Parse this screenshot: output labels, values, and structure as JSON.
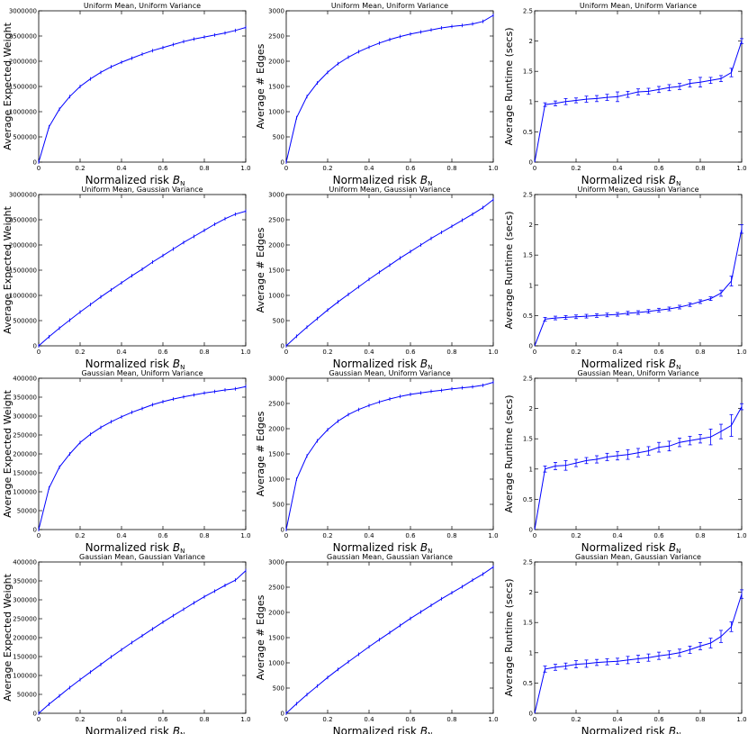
{
  "x": [
    0,
    0.05,
    0.1,
    0.15,
    0.2,
    0.25,
    0.3,
    0.35,
    0.4,
    0.45,
    0.5,
    0.55,
    0.6,
    0.65,
    0.7,
    0.75,
    0.8,
    0.85,
    0.9,
    0.95,
    1.0
  ],
  "xlabel": "Normalized risk",
  "xlabel_symbol": "B",
  "xlabel_subscript": "N",
  "series_color": "#0000ff",
  "chart_data": [
    {
      "type": "line",
      "title": "Uniform Mean, Uniform Variance",
      "xlabel": "Normalized risk B_N",
      "ylabel": "Average Expected Weight",
      "xlim": [
        0,
        1
      ],
      "ylim": [
        0,
        3000000
      ],
      "yticks": [
        0,
        500000,
        1000000,
        1500000,
        2000000,
        2500000,
        3000000
      ],
      "values": [
        0,
        700000,
        1050000,
        1300000,
        1500000,
        1650000,
        1780000,
        1890000,
        1980000,
        2060000,
        2140000,
        2210000,
        2270000,
        2330000,
        2390000,
        2440000,
        2480000,
        2520000,
        2560000,
        2610000,
        2670000
      ],
      "errors": null
    },
    {
      "type": "line",
      "title": "Uniform Mean, Uniform Variance",
      "xlabel": "Normalized risk B_N",
      "ylabel": "Average # Edges",
      "xlim": [
        0,
        1
      ],
      "ylim": [
        0,
        3000
      ],
      "yticks": [
        0,
        500,
        1000,
        1500,
        2000,
        2500,
        3000
      ],
      "values": [
        0,
        880,
        1300,
        1570,
        1780,
        1950,
        2080,
        2190,
        2280,
        2360,
        2430,
        2490,
        2540,
        2580,
        2620,
        2660,
        2690,
        2710,
        2740,
        2790,
        2910
      ],
      "errors": null
    },
    {
      "type": "line",
      "title": "Uniform Mean, Uniform Variance",
      "xlabel": "Normalized risk B_N",
      "ylabel": "Average Runtime (secs)",
      "xlim": [
        0,
        1
      ],
      "ylim": [
        0,
        2.5
      ],
      "yticks": [
        0,
        0.5,
        1.0,
        1.5,
        2.0,
        2.5
      ],
      "values": [
        0,
        0.95,
        0.97,
        1.0,
        1.02,
        1.04,
        1.05,
        1.07,
        1.08,
        1.12,
        1.16,
        1.17,
        1.2,
        1.23,
        1.25,
        1.3,
        1.32,
        1.35,
        1.38,
        1.48,
        2.0
      ],
      "errors": [
        0,
        0.03,
        0.04,
        0.05,
        0.04,
        0.05,
        0.05,
        0.05,
        0.08,
        0.05,
        0.05,
        0.05,
        0.05,
        0.05,
        0.05,
        0.06,
        0.08,
        0.05,
        0.05,
        0.07,
        0.04
      ]
    },
    {
      "type": "line",
      "title": "Uniform Mean, Gaussian Variance",
      "xlabel": "Normalized risk B_N",
      "ylabel": "Average Expected Weight",
      "xlim": [
        0,
        1
      ],
      "ylim": [
        0,
        3000000
      ],
      "yticks": [
        0,
        500000,
        1000000,
        1500000,
        2000000,
        2500000,
        3000000
      ],
      "values": [
        0,
        180000,
        350000,
        510000,
        670000,
        820000,
        970000,
        1110000,
        1250000,
        1390000,
        1520000,
        1660000,
        1790000,
        1920000,
        2050000,
        2170000,
        2290000,
        2410000,
        2520000,
        2610000,
        2670000
      ],
      "errors": null
    },
    {
      "type": "line",
      "title": "Uniform Mean, Gaussian Variance",
      "xlabel": "Normalized risk B_N",
      "ylabel": "Average # Edges",
      "xlim": [
        0,
        1
      ],
      "ylim": [
        0,
        3000
      ],
      "yticks": [
        0,
        500,
        1000,
        1500,
        2000,
        2500,
        3000
      ],
      "values": [
        0,
        190,
        370,
        540,
        710,
        870,
        1020,
        1170,
        1320,
        1460,
        1600,
        1740,
        1870,
        2000,
        2130,
        2250,
        2370,
        2490,
        2610,
        2740,
        2900
      ],
      "errors": null
    },
    {
      "type": "line",
      "title": "Uniform Mean, Gaussian Variance",
      "xlabel": "Normalized risk B_N",
      "ylabel": "Average Runtime (secs)",
      "xlim": [
        0,
        1
      ],
      "ylim": [
        0,
        2.5
      ],
      "yticks": [
        0,
        0.5,
        1.0,
        1.5,
        2.0,
        2.5
      ],
      "values": [
        0,
        0.44,
        0.46,
        0.47,
        0.48,
        0.49,
        0.5,
        0.51,
        0.52,
        0.54,
        0.55,
        0.57,
        0.59,
        0.61,
        0.64,
        0.68,
        0.73,
        0.78,
        0.87,
        1.07,
        1.93
      ],
      "errors": [
        0,
        0.03,
        0.03,
        0.03,
        0.03,
        0.03,
        0.03,
        0.03,
        0.03,
        0.03,
        0.03,
        0.03,
        0.03,
        0.03,
        0.03,
        0.03,
        0.03,
        0.03,
        0.05,
        0.08,
        0.07
      ]
    },
    {
      "type": "line",
      "title": "Gaussian Mean, Uniform Variance",
      "xlabel": "Normalized risk B_N",
      "ylabel": "Average Expected Weight",
      "xlim": [
        0,
        1
      ],
      "ylim": [
        0,
        400000
      ],
      "yticks": [
        0,
        50000,
        100000,
        150000,
        200000,
        250000,
        300000,
        350000,
        400000
      ],
      "values": [
        0,
        110000,
        165000,
        200000,
        230000,
        252000,
        270000,
        285000,
        298000,
        310000,
        320000,
        330000,
        338000,
        345000,
        351000,
        356000,
        361000,
        365000,
        369000,
        372000,
        378000
      ],
      "errors": null
    },
    {
      "type": "line",
      "title": "Gaussian Mean, Uniform Variance",
      "xlabel": "Normalized risk B_N",
      "ylabel": "Average # Edges",
      "xlim": [
        0,
        1
      ],
      "ylim": [
        0,
        3000
      ],
      "yticks": [
        0,
        500,
        1000,
        1500,
        2000,
        2500,
        3000
      ],
      "values": [
        0,
        1000,
        1460,
        1760,
        1980,
        2150,
        2280,
        2380,
        2460,
        2530,
        2590,
        2640,
        2680,
        2710,
        2740,
        2760,
        2790,
        2810,
        2830,
        2860,
        2920
      ],
      "errors": null
    },
    {
      "type": "line",
      "title": "Gaussian Mean, Uniform Variance",
      "xlabel": "Normalized risk B_N",
      "ylabel": "Average Runtime (secs)",
      "xlim": [
        0,
        1
      ],
      "ylim": [
        0,
        2.5
      ],
      "yticks": [
        0,
        0.5,
        1.0,
        1.5,
        2.0,
        2.5
      ],
      "values": [
        0,
        1.0,
        1.05,
        1.06,
        1.1,
        1.14,
        1.16,
        1.2,
        1.22,
        1.24,
        1.27,
        1.3,
        1.36,
        1.38,
        1.44,
        1.47,
        1.5,
        1.53,
        1.62,
        1.72,
        2.03
      ],
      "errors": [
        0,
        0.05,
        0.06,
        0.08,
        0.06,
        0.05,
        0.06,
        0.06,
        0.07,
        0.08,
        0.07,
        0.07,
        0.08,
        0.08,
        0.07,
        0.07,
        0.07,
        0.13,
        0.12,
        0.18,
        0.05
      ]
    },
    {
      "type": "line",
      "title": "Gaussian Mean, Gaussian Variance",
      "xlabel": "Normalized risk B_N",
      "ylabel": "Average Expected Weight",
      "xlim": [
        0,
        1
      ],
      "ylim": [
        0,
        400000
      ],
      "yticks": [
        0,
        50000,
        100000,
        150000,
        200000,
        250000,
        300000,
        350000,
        400000
      ],
      "values": [
        0,
        24000,
        46000,
        68000,
        89000,
        109000,
        129000,
        149000,
        168000,
        187000,
        205000,
        223000,
        241000,
        258000,
        275000,
        292000,
        308000,
        323000,
        338000,
        352000,
        377000
      ],
      "errors": null
    },
    {
      "type": "line",
      "title": "Gaussian Mean, Gaussian Variance",
      "xlabel": "Normalized risk B_N",
      "ylabel": "Average # Edges",
      "xlim": [
        0,
        1
      ],
      "ylim": [
        0,
        3000
      ],
      "yticks": [
        0,
        500,
        1000,
        1500,
        2000,
        2500,
        3000
      ],
      "values": [
        0,
        190,
        370,
        540,
        710,
        870,
        1020,
        1170,
        1320,
        1460,
        1600,
        1740,
        1880,
        2010,
        2140,
        2270,
        2390,
        2510,
        2640,
        2760,
        2900
      ],
      "errors": null
    },
    {
      "type": "line",
      "title": "Gaussian Mean, Gaussian Variance",
      "xlabel": "Normalized risk B_N",
      "ylabel": "Average Runtime (secs)",
      "xlim": [
        0,
        1
      ],
      "ylim": [
        0,
        2.5
      ],
      "yticks": [
        0,
        0.5,
        1.0,
        1.5,
        2.0,
        2.5
      ],
      "values": [
        0,
        0.73,
        0.76,
        0.78,
        0.81,
        0.82,
        0.84,
        0.85,
        0.86,
        0.88,
        0.9,
        0.92,
        0.95,
        0.97,
        1.0,
        1.05,
        1.11,
        1.16,
        1.27,
        1.43,
        1.97
      ],
      "errors": [
        0,
        0.05,
        0.05,
        0.05,
        0.06,
        0.06,
        0.05,
        0.05,
        0.05,
        0.06,
        0.06,
        0.06,
        0.06,
        0.06,
        0.06,
        0.06,
        0.06,
        0.08,
        0.1,
        0.08,
        0.07
      ]
    }
  ]
}
